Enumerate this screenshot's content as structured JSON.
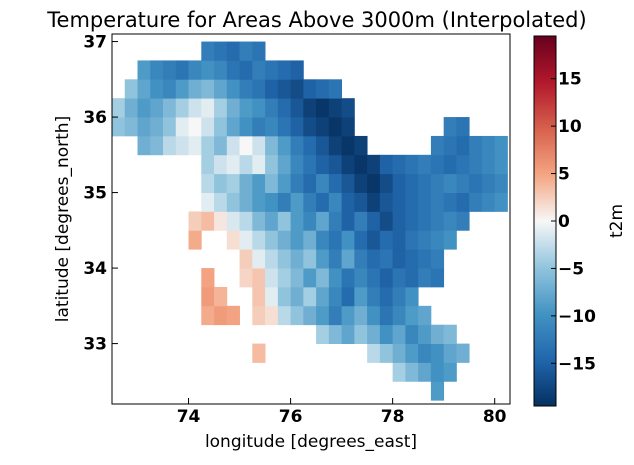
{
  "chart_data": {
    "type": "heatmap",
    "title": "Temperature for Areas Above 3000m (Interpolated)",
    "xlabel": "longitude [degrees_east]",
    "ylabel": "latitude [degrees_north]",
    "xlim": [
      72.5,
      80.3
    ],
    "ylim": [
      32.2,
      37.1
    ],
    "x_ticks": [
      "74",
      "76",
      "78",
      "80"
    ],
    "y_ticks": [
      "33",
      "34",
      "35",
      "36",
      "37"
    ],
    "grid": false,
    "colorbar": {
      "label": "t2m",
      "colormap": "RdBu_r",
      "vmin": -19.5,
      "vmax": 19.5,
      "ticks": [
        "15",
        "10",
        "5",
        "0",
        "−5",
        "−10",
        "−15"
      ]
    },
    "cell_size_deg": 0.25,
    "lon_centers": [
      72.625,
      72.875,
      73.125,
      73.375,
      73.625,
      73.875,
      74.125,
      74.375,
      74.625,
      74.875,
      75.125,
      75.375,
      75.625,
      75.875,
      76.125,
      76.375,
      76.625,
      76.875,
      77.125,
      77.375,
      77.625,
      77.875,
      78.125,
      78.375,
      78.625,
      78.875,
      79.125,
      79.375,
      79.625,
      79.875,
      80.125
    ],
    "lat_centers": [
      32.375,
      32.625,
      32.875,
      33.125,
      33.375,
      33.625,
      33.875,
      34.125,
      34.375,
      34.625,
      34.875,
      35.125,
      35.375,
      35.625,
      35.875,
      36.125,
      36.375,
      36.625,
      36.875
    ],
    "t2m_by_lat": [
      [
        null,
        null,
        null,
        null,
        null,
        null,
        null,
        null,
        null,
        null,
        null,
        null,
        null,
        null,
        null,
        null,
        null,
        null,
        null,
        null,
        null,
        null,
        null,
        null,
        null,
        -9.0,
        null,
        null,
        null,
        null,
        null
      ],
      [
        null,
        null,
        null,
        null,
        null,
        null,
        null,
        null,
        null,
        null,
        null,
        null,
        null,
        null,
        null,
        null,
        null,
        null,
        null,
        null,
        null,
        null,
        -4.0,
        -6.0,
        -8.0,
        -10.0,
        -9.0,
        null,
        null,
        null,
        null
      ],
      [
        null,
        null,
        null,
        null,
        null,
        null,
        null,
        null,
        null,
        null,
        null,
        3.5,
        null,
        null,
        null,
        null,
        null,
        null,
        null,
        null,
        -3.0,
        -5.0,
        -7.0,
        -9.0,
        -11.0,
        -10.0,
        -8.0,
        -7.0,
        null,
        null,
        null
      ],
      [
        null,
        null,
        null,
        null,
        null,
        null,
        null,
        null,
        null,
        null,
        null,
        null,
        null,
        null,
        null,
        null,
        -4.0,
        -6.0,
        -8.0,
        -5.0,
        -7.0,
        -10.0,
        -8.0,
        -11.0,
        -9.0,
        -7.0,
        -6.0,
        null,
        null,
        null,
        null
      ],
      [
        null,
        null,
        null,
        null,
        null,
        null,
        null,
        4.5,
        5.5,
        5.0,
        null,
        2.5,
        1.5,
        -3.0,
        -5.0,
        -7.0,
        -9.0,
        -12.0,
        -9.0,
        -7.0,
        -10.0,
        -13.0,
        -11.0,
        -9.0,
        -8.0,
        null,
        null,
        null,
        null,
        null,
        null
      ],
      [
        null,
        null,
        null,
        null,
        null,
        null,
        null,
        5.5,
        4.0,
        null,
        null,
        3.0,
        -1.0,
        -5.0,
        -7.0,
        -4.0,
        -8.0,
        -11.0,
        -14.0,
        -9.0,
        -12.0,
        -14.0,
        -12.0,
        -10.0,
        null,
        null,
        null,
        null,
        null,
        null,
        null
      ],
      [
        null,
        null,
        null,
        null,
        null,
        null,
        null,
        5.0,
        null,
        null,
        2.0,
        3.0,
        -2.0,
        -4.0,
        -6.0,
        -9.0,
        -6.0,
        -10.0,
        -13.0,
        -11.0,
        -13.0,
        -15.0,
        -13.0,
        -14.0,
        -12.0,
        -13.0,
        null,
        null,
        null,
        null,
        null
      ],
      [
        null,
        null,
        null,
        null,
        null,
        null,
        null,
        null,
        null,
        null,
        2.5,
        -1.0,
        -3.0,
        -5.0,
        -7.0,
        -5.0,
        -9.0,
        -12.0,
        -8.0,
        -12.0,
        -14.0,
        -13.0,
        -15.0,
        -14.0,
        -13.0,
        -12.0,
        null,
        null,
        null,
        null,
        null
      ],
      [
        null,
        null,
        null,
        null,
        null,
        null,
        4.5,
        null,
        null,
        1.5,
        -1.0,
        -3.0,
        -5.0,
        -7.0,
        -9.0,
        -7.0,
        -11.0,
        -13.0,
        -10.0,
        -14.0,
        -16.0,
        -14.0,
        -15.0,
        -13.0,
        -12.0,
        -11.0,
        -10.0,
        null,
        null,
        null,
        null
      ],
      [
        null,
        null,
        null,
        null,
        null,
        null,
        2.5,
        3.5,
        1.0,
        -1.5,
        -3.0,
        -6.0,
        -8.0,
        -5.0,
        -9.0,
        -11.0,
        -8.0,
        -12.0,
        -15.0,
        -12.0,
        -15.0,
        -17.0,
        -15.0,
        -14.0,
        -13.0,
        -12.0,
        -11.0,
        -12.0,
        null,
        null,
        null
      ],
      [
        null,
        null,
        null,
        null,
        null,
        null,
        null,
        -1.0,
        -3.0,
        -5.0,
        -7.0,
        -9.0,
        -10.0,
        -12.0,
        -9.0,
        -12.0,
        -14.0,
        -11.0,
        -15.0,
        -16.0,
        -18.0,
        -16.0,
        -15.0,
        -14.0,
        -13.0,
        -12.0,
        -13.0,
        -14.0,
        -12.0,
        -11.0,
        -10.0
      ],
      [
        null,
        null,
        null,
        null,
        null,
        null,
        null,
        -3.0,
        -5.0,
        -4.0,
        -7.0,
        -9.0,
        -6.0,
        -9.0,
        -12.0,
        -14.0,
        -11.0,
        -14.0,
        -16.0,
        -18.0,
        -19.0,
        -17.0,
        -15.0,
        -14.0,
        -13.0,
        -12.0,
        -11.0,
        -12.0,
        -13.0,
        -12.0,
        -11.0
      ],
      [
        null,
        null,
        null,
        null,
        null,
        null,
        null,
        -4.0,
        -2.0,
        -1.0,
        -3.0,
        -1.0,
        -5.0,
        -8.0,
        -11.0,
        -13.0,
        -15.0,
        -16.0,
        -18.0,
        -19.0,
        -18.0,
        -15.0,
        -14.0,
        -13.0,
        -12.0,
        -13.0,
        -14.0,
        -13.0,
        -12.0,
        -11.0,
        -10.0
      ],
      [
        null,
        null,
        -7.0,
        -6.0,
        -3.0,
        -2.0,
        -1.0,
        -4.0,
        -6.0,
        -2.0,
        0.0,
        -2.0,
        -6.0,
        -9.0,
        -12.0,
        -14.0,
        -16.0,
        -18.0,
        -19.0,
        -18.0,
        null,
        null,
        null,
        null,
        null,
        -12.0,
        -13.0,
        -14.0,
        -12.0,
        -11.0,
        -10.0
      ],
      [
        -5.0,
        -6.0,
        -8.0,
        -7.0,
        -5.0,
        -1.0,
        0.0,
        -2.0,
        -5.0,
        -8.0,
        -10.0,
        -12.0,
        -11.0,
        -13.0,
        -15.0,
        -17.0,
        -18.0,
        -19.0,
        -18.0,
        null,
        null,
        null,
        null,
        null,
        null,
        null,
        -12.0,
        -13.0,
        null,
        null,
        null
      ],
      [
        -4.0,
        -7.0,
        -9.0,
        -8.0,
        -6.0,
        -4.0,
        -2.0,
        -1.0,
        -4.0,
        -7.0,
        -9.0,
        -10.0,
        -12.0,
        -14.0,
        -16.0,
        -18.0,
        -19.0,
        -18.0,
        -17.0,
        null,
        null,
        null,
        null,
        null,
        null,
        null,
        null,
        null,
        null,
        null,
        null
      ],
      [
        null,
        -5.0,
        -8.0,
        -10.0,
        -11.0,
        -9.0,
        -7.0,
        -6.0,
        -8.0,
        -10.0,
        -12.0,
        -13.0,
        -15.0,
        -16.0,
        -17.0,
        -15.0,
        -14.0,
        -13.0,
        null,
        null,
        null,
        null,
        null,
        null,
        null,
        null,
        null,
        null,
        null,
        null,
        null
      ],
      [
        null,
        null,
        -9.0,
        -11.0,
        -12.0,
        -13.0,
        -11.0,
        -10.0,
        -11.0,
        -13.0,
        -14.0,
        -12.0,
        -13.0,
        -14.0,
        -15.0,
        null,
        null,
        null,
        null,
        null,
        null,
        null,
        null,
        null,
        null,
        null,
        null,
        null,
        null,
        null,
        null
      ],
      [
        null,
        null,
        null,
        null,
        null,
        null,
        null,
        -12.0,
        -13.0,
        -14.0,
        -12.0,
        -13.0,
        null,
        null,
        null,
        null,
        null,
        null,
        null,
        null,
        null,
        null,
        null,
        null,
        null,
        null,
        null,
        null,
        null,
        null,
        null
      ]
    ]
  }
}
